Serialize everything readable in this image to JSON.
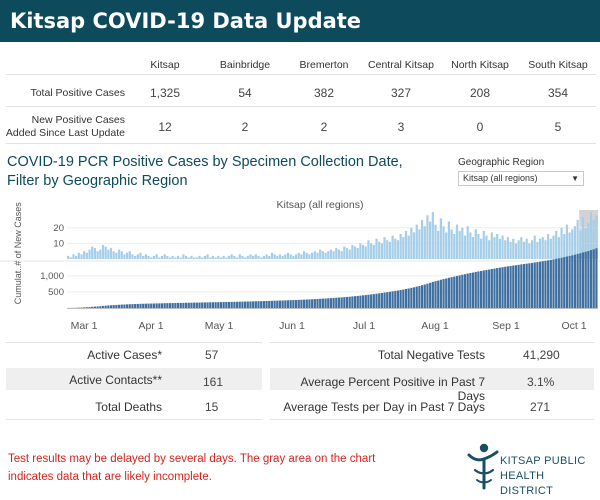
{
  "banner": {
    "title": "Kitsap COVID-19 Data Update"
  },
  "summary_table": {
    "columns": [
      "Kitsap",
      "Bainbridge",
      "Bremerton",
      "Central Kitsap",
      "North Kitsap",
      "South Kitsap"
    ],
    "rows": [
      {
        "label": "Total Positive Cases",
        "values": [
          "1,325",
          "54",
          "382",
          "327",
          "208",
          "354"
        ]
      },
      {
        "label_line1": "New Positive Cases",
        "label_line2": "Added Since Last Update",
        "values": [
          "12",
          "2",
          "2",
          "3",
          "0",
          "5"
        ]
      }
    ]
  },
  "chart_section": {
    "title_line1": "COVID-19 PCR Positive Cases by Specimen Collection Date,",
    "title_line2": "Filter by Geographic Region",
    "filter_label": "Geographic Region",
    "filter_value": "Kitsap (all regions)",
    "filter_caret": "▼"
  },
  "chart_data": {
    "type": "bar",
    "title": "Kitsap (all regions)",
    "x_axis": {
      "tick_labels": [
        "Mar 1",
        "Apr 1",
        "May 1",
        "Jun 1",
        "Jul 1",
        "Aug 1",
        "Sep 1",
        "Oct 1"
      ]
    },
    "panels": [
      {
        "ylabel": "# of New Cases",
        "y_ticks": [
          "10",
          "20"
        ],
        "ylim": [
          0,
          32
        ],
        "bar_color": "#a6cee8"
      },
      {
        "ylabel": "Cumulat..",
        "y_ticks": [
          "500",
          "1,000"
        ],
        "ylim": [
          0,
          1400
        ],
        "bar_color": "#3f6fa0"
      }
    ],
    "daily_new_cases": [
      2,
      1,
      3,
      2,
      4,
      3,
      5,
      4,
      6,
      8,
      7,
      5,
      6,
      9,
      8,
      6,
      7,
      5,
      4,
      6,
      5,
      3,
      4,
      5,
      3,
      2,
      3,
      4,
      2,
      3,
      2,
      1,
      2,
      3,
      1,
      2,
      3,
      2,
      1,
      2,
      1,
      2,
      1,
      3,
      2,
      1,
      2,
      1,
      1,
      2,
      1,
      2,
      3,
      1,
      2,
      1,
      2,
      1,
      2,
      1,
      2,
      3,
      2,
      1,
      3,
      2,
      1,
      2,
      3,
      2,
      3,
      2,
      1,
      2,
      3,
      2,
      4,
      3,
      2,
      3,
      2,
      3,
      4,
      3,
      2,
      3,
      4,
      3,
      5,
      4,
      3,
      4,
      5,
      4,
      6,
      5,
      4,
      5,
      6,
      5,
      7,
      6,
      5,
      8,
      7,
      6,
      9,
      8,
      7,
      10,
      9,
      8,
      12,
      10,
      9,
      13,
      11,
      10,
      14,
      12,
      11,
      15,
      13,
      12,
      16,
      14,
      18,
      15,
      20,
      17,
      22,
      19,
      25,
      21,
      28,
      24,
      30,
      22,
      18,
      26,
      21,
      17,
      24,
      19,
      16,
      22,
      18,
      20,
      15,
      21,
      17,
      14,
      19,
      16,
      13,
      18,
      15,
      12,
      17,
      14,
      16,
      13,
      15,
      12,
      14,
      11,
      13,
      10,
      12,
      14,
      11,
      13,
      10,
      12,
      15,
      11,
      13,
      14,
      12,
      16,
      13,
      15,
      18,
      14,
      20,
      16,
      22,
      17,
      19,
      21,
      25,
      18,
      27,
      20,
      23,
      30,
      25,
      28
    ],
    "incomplete_days": 7
  },
  "stats_left": [
    {
      "label": "Active Cases*",
      "value": "57"
    },
    {
      "label": "Active Contacts**",
      "value": "161"
    },
    {
      "label": "Total Deaths",
      "value": "15"
    }
  ],
  "stats_right": [
    {
      "label": "Total Negative Tests",
      "value": "41,290"
    },
    {
      "label": "Average Percent Positive in Past 7 Days",
      "value": "3.1%"
    },
    {
      "label": "Average Tests per Day in Past 7 Days",
      "value": "271"
    }
  ],
  "footnote": {
    "line1": "Test results may be delayed by several days. The gray area on the chart",
    "line2": "indicates data that are likely incomplete."
  },
  "logo": {
    "line1": "KITSAP PUBLIC",
    "line2": "HEALTH DISTRICT",
    "brand_color": "#1a4f62"
  },
  "colors": {
    "banner_bg": "#0d4a5c",
    "accent": "#0d4a5c",
    "warning_text": "#d6231d"
  }
}
